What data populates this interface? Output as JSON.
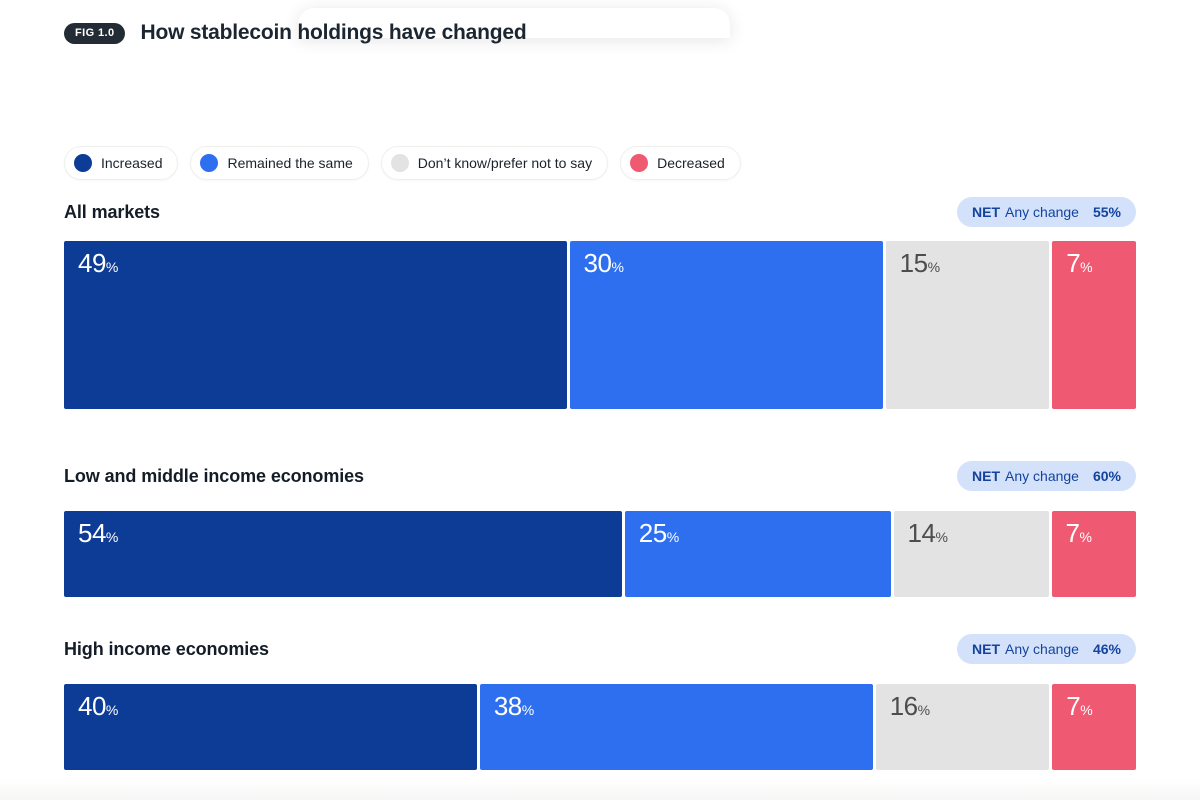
{
  "figure": {
    "badge": "FIG 1.0",
    "title": "How stablecoin holdings have changed"
  },
  "legend": [
    {
      "label": "Increased",
      "color": "#0d3c96"
    },
    {
      "label": "Remained the same",
      "color": "#2e6ff0"
    },
    {
      "label": "Don’t know/prefer not to say",
      "color": "#e3e3e3"
    },
    {
      "label": "Decreased",
      "color": "#ef5a72"
    }
  ],
  "net_badge": {
    "prefix": "NET",
    "text": "Any change"
  },
  "chart_data": {
    "type": "bar",
    "subtype": "stacked-horizontal",
    "title": "How stablecoin holdings have changed",
    "unit": "%",
    "categories": [
      "Increased",
      "Remained the same",
      "Don’t know/prefer not to say",
      "Decreased"
    ],
    "colors": [
      "#0d3c96",
      "#2e6ff0",
      "#e3e3e3",
      "#ef5a72"
    ],
    "legend_position": "top",
    "axis_range": [
      0,
      100
    ],
    "grid": false,
    "groups": [
      {
        "label": "All markets",
        "net": "55%",
        "values": [
          49,
          30,
          15,
          7
        ]
      },
      {
        "label": "Low and middle income economies",
        "net": "60%",
        "values": [
          54,
          25,
          14,
          7
        ]
      },
      {
        "label": "High income economies",
        "net": "46%",
        "values": [
          40,
          38,
          16,
          7
        ]
      }
    ]
  }
}
